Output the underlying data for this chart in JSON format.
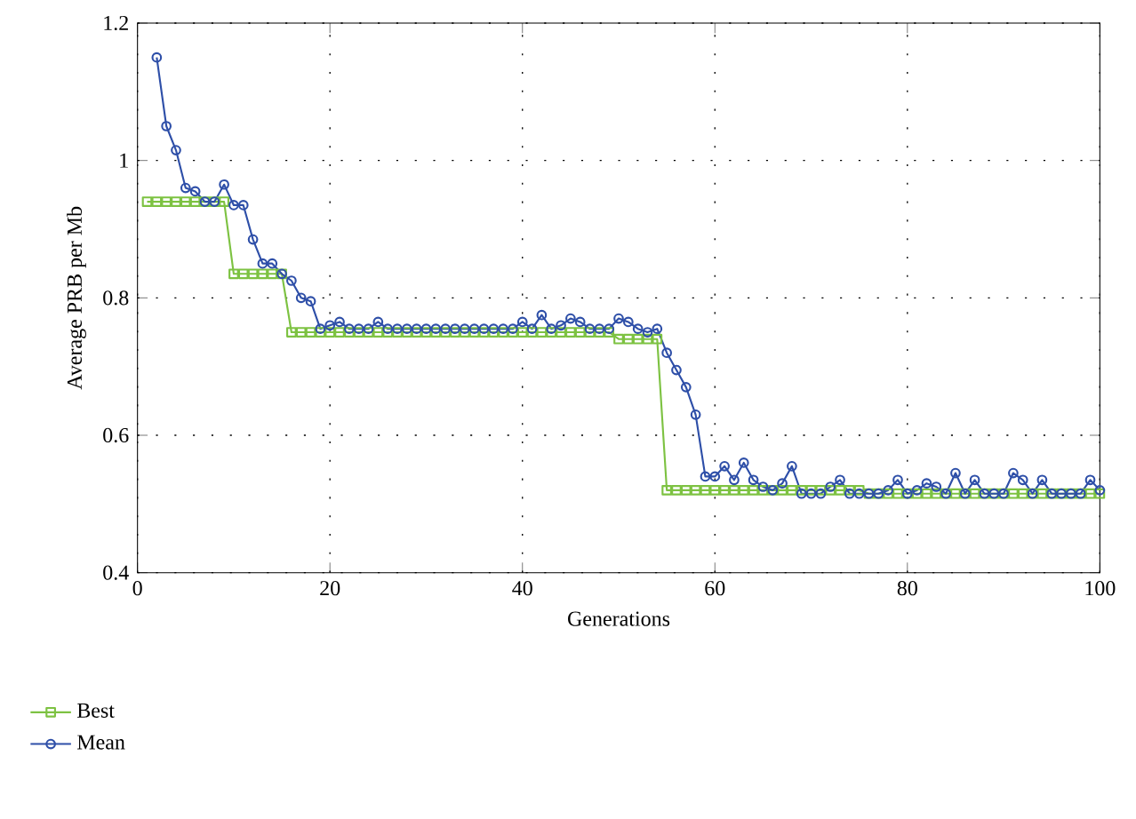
{
  "chart_data": {
    "type": "line",
    "xlabel": "Generations",
    "ylabel": "Average PRB per Mb",
    "xlim": [
      0,
      100
    ],
    "ylim": [
      0.4,
      1.2
    ],
    "xticks": [
      0,
      20,
      40,
      60,
      80,
      100
    ],
    "yticks": [
      0.4,
      0.6,
      0.8,
      1,
      1.2
    ],
    "grid": true,
    "legend": "bottom",
    "x": [
      1,
      2,
      3,
      4,
      5,
      6,
      7,
      8,
      9,
      10,
      11,
      12,
      13,
      14,
      15,
      16,
      17,
      18,
      19,
      20,
      21,
      22,
      23,
      24,
      25,
      26,
      27,
      28,
      29,
      30,
      31,
      32,
      33,
      34,
      35,
      36,
      37,
      38,
      39,
      40,
      41,
      42,
      43,
      44,
      45,
      46,
      47,
      48,
      49,
      50,
      51,
      52,
      53,
      54,
      55,
      56,
      57,
      58,
      59,
      60,
      61,
      62,
      63,
      64,
      65,
      66,
      67,
      68,
      69,
      70,
      71,
      72,
      73,
      74,
      75,
      76,
      77,
      78,
      79,
      80,
      81,
      82,
      83,
      84,
      85,
      86,
      87,
      88,
      89,
      90,
      91,
      92,
      93,
      94,
      95,
      96,
      97,
      98,
      99,
      100
    ],
    "series": [
      {
        "name": "Best",
        "color": "#7dc242",
        "marker": "square",
        "values": [
          0.94,
          0.94,
          0.94,
          0.94,
          0.94,
          0.94,
          0.94,
          0.94,
          0.94,
          0.835,
          0.835,
          0.835,
          0.835,
          0.835,
          0.835,
          0.75,
          0.75,
          0.75,
          0.75,
          0.75,
          0.75,
          0.75,
          0.75,
          0.75,
          0.75,
          0.75,
          0.75,
          0.75,
          0.75,
          0.75,
          0.75,
          0.75,
          0.75,
          0.75,
          0.75,
          0.75,
          0.75,
          0.75,
          0.75,
          0.75,
          0.75,
          0.75,
          0.75,
          0.75,
          0.75,
          0.75,
          0.75,
          0.75,
          0.75,
          0.74,
          0.74,
          0.74,
          0.74,
          0.74,
          0.52,
          0.52,
          0.52,
          0.52,
          0.52,
          0.52,
          0.52,
          0.52,
          0.52,
          0.52,
          0.52,
          0.52,
          0.52,
          0.52,
          0.52,
          0.52,
          0.52,
          0.52,
          0.52,
          0.52,
          0.52,
          0.515,
          0.515,
          0.515,
          0.515,
          0.515,
          0.515,
          0.515,
          0.515,
          0.515,
          0.515,
          0.515,
          0.515,
          0.515,
          0.515,
          0.515,
          0.515,
          0.515,
          0.515,
          0.515,
          0.515,
          0.515,
          0.515,
          0.515,
          0.515,
          0.515
        ]
      },
      {
        "name": "Mean",
        "color": "#2e4fa8",
        "marker": "circle",
        "values": [
          null,
          1.15,
          1.05,
          1.015,
          0.96,
          0.955,
          0.94,
          0.94,
          0.965,
          0.935,
          0.935,
          0.885,
          0.85,
          0.85,
          0.835,
          0.825,
          0.8,
          0.795,
          0.755,
          0.76,
          0.765,
          0.755,
          0.755,
          0.755,
          0.765,
          0.755,
          0.755,
          0.755,
          0.755,
          0.755,
          0.755,
          0.755,
          0.755,
          0.755,
          0.755,
          0.755,
          0.755,
          0.755,
          0.755,
          0.765,
          0.755,
          0.775,
          0.755,
          0.76,
          0.77,
          0.765,
          0.755,
          0.755,
          0.755,
          0.77,
          0.765,
          0.755,
          0.75,
          0.755,
          0.72,
          0.695,
          0.67,
          0.63,
          0.54,
          0.54,
          0.555,
          0.535,
          0.56,
          0.535,
          0.525,
          0.52,
          0.53,
          0.555,
          0.515,
          0.515,
          0.515,
          0.525,
          0.535,
          0.515,
          0.515,
          0.515,
          0.515,
          0.52,
          0.535,
          0.515,
          0.52,
          0.53,
          0.525,
          0.515,
          0.545,
          0.515,
          0.535,
          0.515,
          0.515,
          0.515,
          0.545,
          0.535,
          0.515,
          0.535,
          0.515,
          0.515,
          0.515,
          0.515,
          0.535,
          0.52
        ]
      }
    ]
  }
}
